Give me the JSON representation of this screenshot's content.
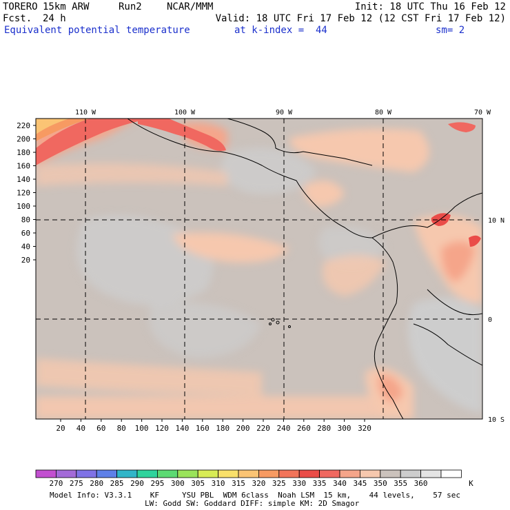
{
  "header": {
    "model": "TORERO",
    "resolution": "15km ARW",
    "run": "Run2",
    "org": "NCAR/MMM",
    "init": "Init: 18 UTC Thu 16 Feb 12",
    "fcst_label": "Fcst.",
    "fcst_value": "24 h",
    "valid": "Valid: 18 UTC Fri 17 Feb 12 (12 CST Fri 17 Feb 12)",
    "field": "Equivalent potential temperature",
    "kindex": "at k-index =  44",
    "smooth": "sm= 2"
  },
  "map": {
    "top_lon_labels": [
      "110 W",
      "100 W",
      "90 W",
      "80 W",
      "70 W"
    ],
    "right_lat_labels": [
      "10 N",
      "0",
      "10 S"
    ],
    "y_ticks": [
      "220",
      "200",
      "180",
      "160",
      "140",
      "120",
      "100",
      "80",
      "60",
      "40",
      "20"
    ],
    "x_ticks": [
      "20",
      "40",
      "60",
      "80",
      "100",
      "120",
      "140",
      "160",
      "180",
      "200",
      "220",
      "240",
      "260",
      "280",
      "300",
      "320"
    ]
  },
  "colorbar": {
    "unit": "K",
    "labels": [
      "270",
      "275",
      "280",
      "285",
      "290",
      "295",
      "300",
      "305",
      "310",
      "315",
      "320",
      "325",
      "330",
      "335",
      "340",
      "345",
      "350",
      "355",
      "360"
    ],
    "colors": [
      "#c24fd0",
      "#a36ad8",
      "#7f72e6",
      "#5e80e8",
      "#31b5c8",
      "#2fd39c",
      "#5cda73",
      "#9ae35a",
      "#d8ec55",
      "#f9e06a",
      "#fbc474",
      "#f79a62",
      "#f2745a",
      "#ea4c48",
      "#f06860",
      "#f5a58a",
      "#f6c8ae",
      "#cbc2bc",
      "#cdcdcd",
      "#e4e4e4",
      "#ffffff"
    ]
  },
  "footer": {
    "line1": "Model Info: V3.3.1    KF     YSU PBL  WDM 6class  Noah LSM  15 km,    44 levels,    57 sec",
    "line2": "LW: Godd SW: Goddard DIFF: simple KM: 2D Smagor"
  }
}
